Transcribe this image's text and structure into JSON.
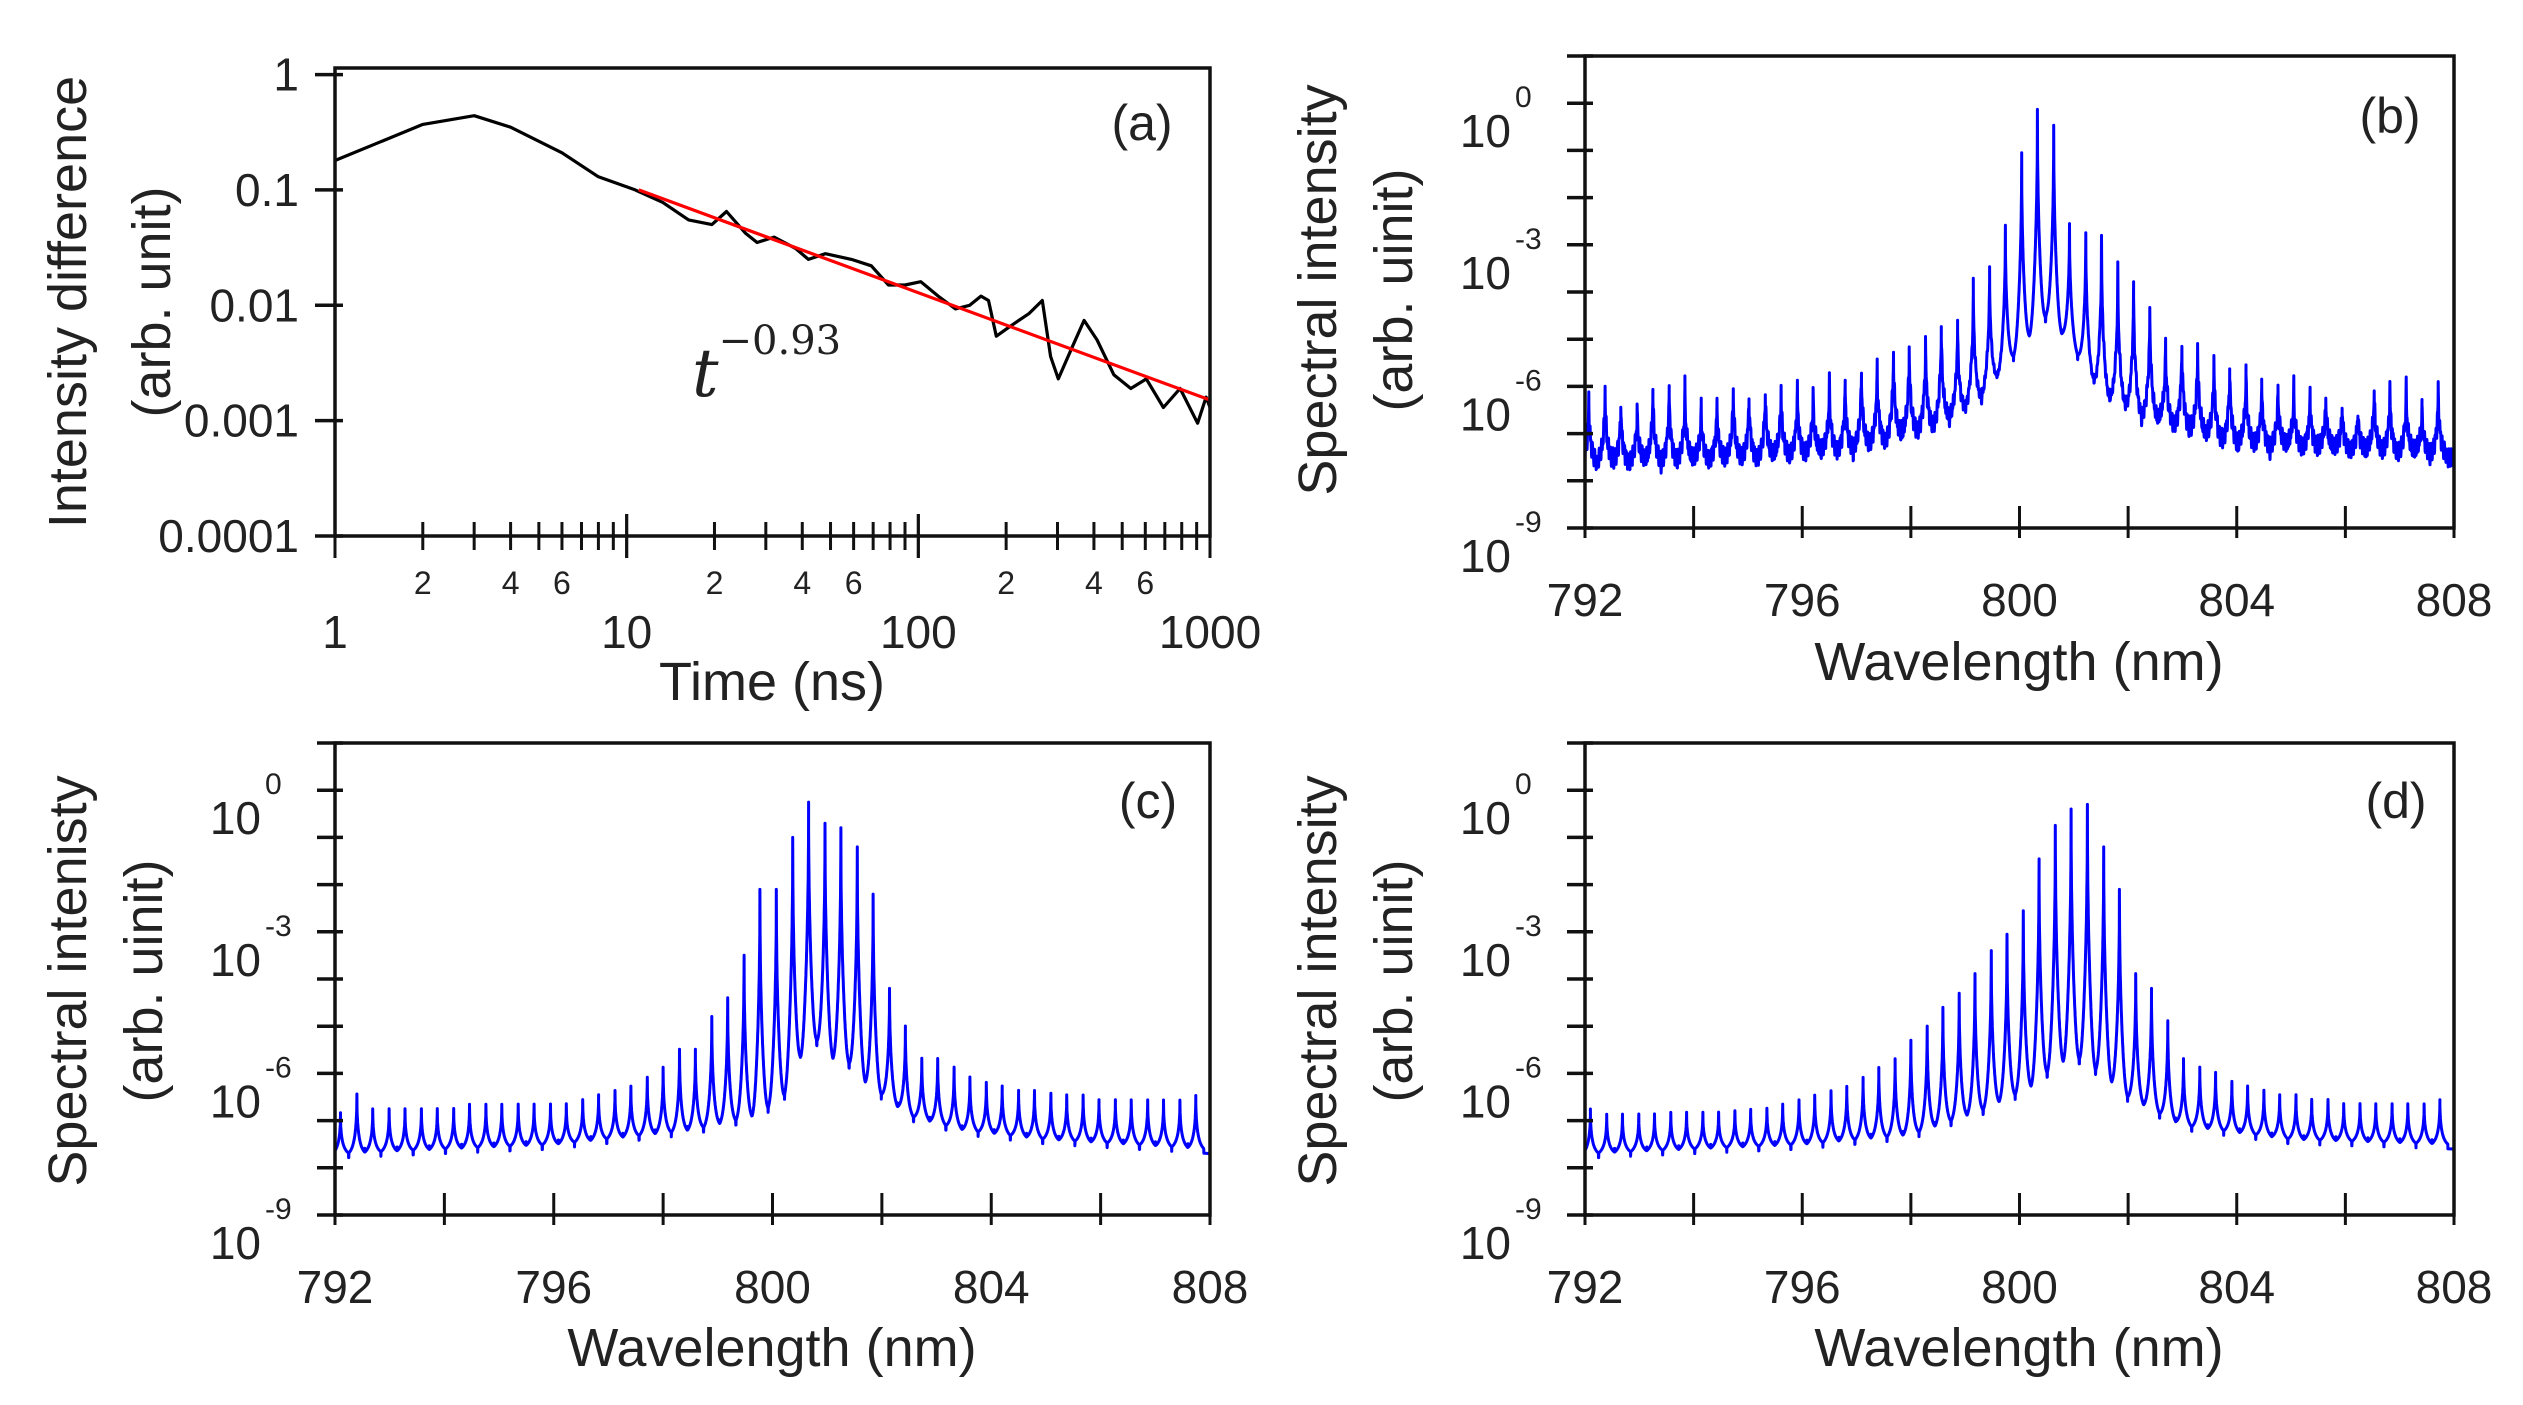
{
  "chart_data": [
    {
      "panel": "(a)",
      "type": "line",
      "xscale": "log",
      "yscale": "log",
      "xlim": [
        1,
        1000
      ],
      "ylim": [
        0.0001,
        1.14
      ],
      "xlabel": "Time (ns)",
      "ylabel": [
        "Intensity difference",
        "(arb. unit)"
      ],
      "yticks": [
        {
          "value": 1,
          "label": "1"
        },
        {
          "value": 0.1,
          "label": "0.1"
        },
        {
          "value": 0.01,
          "label": "0.01"
        },
        {
          "value": 0.001,
          "label": "0.001"
        },
        {
          "value": 0.0001,
          "label": "0.0001"
        }
      ],
      "xticks": [
        {
          "value": 1,
          "label": "1"
        },
        {
          "value": 10,
          "label": "10"
        },
        {
          "value": 100,
          "label": "100"
        },
        {
          "value": 1000,
          "label": "1000"
        }
      ],
      "xminor_labels": [
        {
          "value": 2,
          "label": "2"
        },
        {
          "value": 4,
          "label": "4"
        },
        {
          "value": 6,
          "label": "6"
        },
        {
          "value": 20,
          "label": "2"
        },
        {
          "value": 40,
          "label": "4"
        },
        {
          "value": 60,
          "label": "6"
        },
        {
          "value": 200,
          "label": "2"
        },
        {
          "value": 400,
          "label": "4"
        },
        {
          "value": 600,
          "label": "6"
        }
      ],
      "series": [
        {
          "color": "#000000",
          "x": [
            1,
            2,
            3,
            4,
            6,
            8,
            10.7,
            13.3,
            16.3,
            19.6,
            22,
            25.6,
            28,
            32,
            38,
            42,
            48,
            59,
            69,
            79,
            90,
            102,
            117,
            134,
            150,
            164,
            174,
            185,
            205,
            240,
            266,
            284,
            302,
            335,
            370,
            410,
            468,
            535,
            605,
            692,
            790,
            907,
            970,
            1000
          ],
          "y": [
            0.18,
            0.37,
            0.44,
            0.35,
            0.21,
            0.13,
            0.1,
            0.078,
            0.055,
            0.05,
            0.065,
            0.042,
            0.035,
            0.039,
            0.031,
            0.025,
            0.028,
            0.025,
            0.022,
            0.015,
            0.015,
            0.016,
            0.012,
            0.0093,
            0.01,
            0.012,
            0.011,
            0.0054,
            0.0065,
            0.0085,
            0.011,
            0.0036,
            0.0023,
            0.0042,
            0.0074,
            0.005,
            0.0025,
            0.0019,
            0.0023,
            0.0013,
            0.0019,
            0.00095,
            0.0016,
            0.0013
          ]
        }
      ],
      "fit": {
        "color": "#ff0000",
        "amplitude": 0.93,
        "exponent": -0.93,
        "x_range": [
          11,
          1000
        ]
      },
      "annotation": {
        "base": "t",
        "exponent": "−0.93"
      }
    },
    {
      "panel": "(b)",
      "type": "line",
      "xscale": "linear",
      "yscale": "log",
      "xlim": [
        792,
        808
      ],
      "ylim": [
        1e-09,
        10
      ],
      "xlabel": "Wavelength (nm)",
      "ylabel": [
        "Spectral intensity",
        "(arb. uinit)"
      ],
      "yticks": [
        {
          "value": 1,
          "base": "10",
          "exp": "0"
        },
        {
          "value": 0.001,
          "base": "10",
          "exp": "-3"
        },
        {
          "value": 1e-06,
          "base": "10",
          "exp": "-6"
        },
        {
          "value": 1e-09,
          "base": "10",
          "exp": "-9"
        }
      ],
      "xticks": [
        {
          "value": 792,
          "label": "792"
        },
        {
          "value": 796,
          "label": "796"
        },
        {
          "value": 800,
          "label": "800"
        },
        {
          "value": 804,
          "label": "804"
        },
        {
          "value": 808,
          "label": "808"
        }
      ],
      "color": "#0000ff",
      "mode_spacing_nm": 0.295,
      "peaks": [
        [
          792.07,
          6.3e-07
        ],
        [
          792.37,
          1e-06
        ],
        [
          792.66,
          5e-07
        ],
        [
          792.96,
          4e-07
        ],
        [
          793.25,
          1e-06
        ],
        [
          793.55,
          1e-06
        ],
        [
          793.84,
          1e-06
        ],
        [
          794.14,
          4e-07
        ],
        [
          794.43,
          5e-07
        ],
        [
          794.73,
          1e-06
        ],
        [
          795.02,
          7.9e-07
        ],
        [
          795.32,
          1e-06
        ],
        [
          795.61,
          1e-06
        ],
        [
          795.91,
          1e-06
        ],
        [
          796.2,
          7.9e-07
        ],
        [
          796.5,
          1.3e-06
        ],
        [
          796.79,
          1.3e-06
        ],
        [
          797.09,
          2.5e-06
        ],
        [
          797.38,
          3.2e-06
        ],
        [
          797.68,
          6.3e-06
        ],
        [
          797.97,
          7.9e-06
        ],
        [
          798.27,
          1e-05
        ],
        [
          798.56,
          2.5e-05
        ],
        [
          798.86,
          2.5e-05
        ],
        [
          799.15,
          0.00016
        ],
        [
          799.45,
          0.00032
        ],
        [
          799.74,
          0.0025
        ],
        [
          800.04,
          0.089
        ],
        [
          800.33,
          0.74
        ],
        [
          800.63,
          0.34
        ],
        [
          800.92,
          0.0028
        ],
        [
          801.22,
          0.0018
        ],
        [
          801.51,
          0.0014
        ],
        [
          801.81,
          0.00032
        ],
        [
          802.1,
          0.00016
        ],
        [
          802.4,
          5e-05
        ],
        [
          802.69,
          1e-05
        ],
        [
          802.99,
          1e-05
        ],
        [
          803.28,
          7.9e-06
        ],
        [
          803.58,
          4e-06
        ],
        [
          803.87,
          3.2e-06
        ],
        [
          804.17,
          2.5e-06
        ],
        [
          804.46,
          1.3e-06
        ],
        [
          804.76,
          1e-06
        ],
        [
          805.05,
          1e-06
        ],
        [
          805.35,
          7.9e-07
        ],
        [
          805.64,
          6.3e-07
        ],
        [
          805.94,
          4e-07
        ],
        [
          806.23,
          3.2e-07
        ],
        [
          806.53,
          1e-06
        ],
        [
          806.82,
          1e-06
        ],
        [
          807.12,
          1e-06
        ],
        [
          807.41,
          4e-07
        ],
        [
          807.71,
          1e-06
        ]
      ],
      "baseline": [
        [
          792,
          2e-08
        ],
        [
          795,
          2.5e-08
        ],
        [
          797,
          4e-08
        ],
        [
          798.5,
          1.3e-07
        ],
        [
          799.3,
          5e-07
        ],
        [
          800,
          5e-06
        ],
        [
          800.5,
          2.5e-05
        ],
        [
          801,
          5e-06
        ],
        [
          801.5,
          6e-07
        ],
        [
          802.3,
          2e-07
        ],
        [
          804,
          5e-08
        ],
        [
          808,
          3e-08
        ]
      ]
    },
    {
      "panel": "(c)",
      "type": "line",
      "xscale": "linear",
      "yscale": "log",
      "xlim": [
        792,
        808
      ],
      "ylim": [
        1e-09,
        10
      ],
      "xlabel": "Wavelength (nm)",
      "ylabel": [
        "Spectral intenisty",
        "(arb. uinit)"
      ],
      "yticks": [
        {
          "value": 1,
          "base": "10",
          "exp": "0"
        },
        {
          "value": 0.001,
          "base": "10",
          "exp": "-3"
        },
        {
          "value": 1e-06,
          "base": "10",
          "exp": "-6"
        },
        {
          "value": 1e-09,
          "base": "10",
          "exp": "-9"
        }
      ],
      "xticks": [
        {
          "value": 792,
          "label": "792"
        },
        {
          "value": 796,
          "label": "796"
        },
        {
          "value": 800,
          "label": "800"
        },
        {
          "value": 804,
          "label": "804"
        },
        {
          "value": 808,
          "label": "808"
        }
      ],
      "color": "#0000ff",
      "mode_spacing_nm": 0.295,
      "peaks": [
        [
          792.1,
          1.3e-07
        ],
        [
          792.4,
          3.5e-07
        ],
        [
          792.69,
          1.6e-07
        ],
        [
          792.99,
          1.6e-07
        ],
        [
          793.28,
          1.6e-07
        ],
        [
          793.58,
          1.6e-07
        ],
        [
          793.87,
          1.6e-07
        ],
        [
          794.17,
          1.6e-07
        ],
        [
          794.46,
          2e-07
        ],
        [
          794.76,
          2e-07
        ],
        [
          795.05,
          2e-07
        ],
        [
          795.35,
          2e-07
        ],
        [
          795.64,
          2e-07
        ],
        [
          795.94,
          2e-07
        ],
        [
          796.23,
          2e-07
        ],
        [
          796.53,
          2.5e-07
        ],
        [
          796.82,
          3.2e-07
        ],
        [
          797.12,
          4e-07
        ],
        [
          797.41,
          5e-07
        ],
        [
          797.71,
          7.9e-07
        ],
        [
          798,
          1.3e-06
        ],
        [
          798.3,
          3.2e-06
        ],
        [
          798.59,
          3.2e-06
        ],
        [
          798.89,
          1.6e-05
        ],
        [
          799.18,
          4e-05
        ],
        [
          799.48,
          0.00032
        ],
        [
          799.77,
          0.0079
        ],
        [
          800.07,
          0.0079
        ],
        [
          800.37,
          0.1
        ],
        [
          800.66,
          0.56
        ],
        [
          800.96,
          0.2
        ],
        [
          801.25,
          0.16
        ],
        [
          801.55,
          0.063
        ],
        [
          801.84,
          0.0063
        ],
        [
          802.14,
          6.3e-05
        ],
        [
          802.43,
          1e-05
        ],
        [
          802.73,
          2e-06
        ],
        [
          803.02,
          2e-06
        ],
        [
          803.32,
          1.3e-06
        ],
        [
          803.61,
          7.9e-07
        ],
        [
          803.91,
          6e-07
        ],
        [
          804.2,
          5e-07
        ],
        [
          804.5,
          4e-07
        ],
        [
          804.79,
          4e-07
        ],
        [
          805.09,
          3.5e-07
        ],
        [
          805.38,
          3.2e-07
        ],
        [
          805.68,
          3.2e-07
        ],
        [
          805.97,
          2.5e-07
        ],
        [
          806.27,
          2.5e-07
        ],
        [
          806.56,
          2.5e-07
        ],
        [
          806.86,
          2.5e-07
        ],
        [
          807.15,
          2.5e-07
        ],
        [
          807.45,
          2.5e-07
        ],
        [
          807.74,
          3.2e-07
        ]
      ],
      "baseline": [
        [
          792,
          1.6e-08
        ],
        [
          796,
          2.5e-08
        ],
        [
          798.5,
          5e-08
        ],
        [
          799.7,
          1e-07
        ],
        [
          800.2,
          2.5e-07
        ],
        [
          800.5,
          1.6e-06
        ],
        [
          800.8,
          4e-06
        ],
        [
          801.1,
          1.6e-06
        ],
        [
          801.4,
          1.3e-06
        ],
        [
          801.7,
          5e-07
        ],
        [
          802,
          2.8e-07
        ],
        [
          802.5,
          1e-07
        ],
        [
          803.5,
          5e-08
        ],
        [
          805,
          3.2e-08
        ],
        [
          808,
          2e-08
        ]
      ]
    },
    {
      "panel": "(d)",
      "type": "line",
      "xscale": "linear",
      "yscale": "log",
      "xlim": [
        792,
        808
      ],
      "ylim": [
        1e-09,
        10
      ],
      "xlabel": "Wavelength (nm)",
      "ylabel": [
        "Spectral intensity",
        "(arb. uinit)"
      ],
      "yticks": [
        {
          "value": 1,
          "base": "10",
          "exp": "0"
        },
        {
          "value": 0.001,
          "base": "10",
          "exp": "-3"
        },
        {
          "value": 1e-06,
          "base": "10",
          "exp": "-6"
        },
        {
          "value": 1e-09,
          "base": "10",
          "exp": "-9"
        }
      ],
      "xticks": [
        {
          "value": 792,
          "label": "792"
        },
        {
          "value": 796,
          "label": "796"
        },
        {
          "value": 800,
          "label": "800"
        },
        {
          "value": 804,
          "label": "804"
        },
        {
          "value": 808,
          "label": "808"
        }
      ],
      "color": "#0000ff",
      "mode_spacing_nm": 0.295,
      "peaks": [
        [
          792.1,
          1.6e-07
        ],
        [
          792.4,
          1.2e-07
        ],
        [
          792.69,
          1.2e-07
        ],
        [
          792.99,
          1.2e-07
        ],
        [
          793.28,
          1.2e-07
        ],
        [
          793.58,
          1.3e-07
        ],
        [
          793.87,
          1.3e-07
        ],
        [
          794.17,
          1.3e-07
        ],
        [
          794.46,
          1.3e-07
        ],
        [
          794.76,
          1.4e-07
        ],
        [
          795.05,
          1.5e-07
        ],
        [
          795.35,
          1.6e-07
        ],
        [
          795.64,
          2e-07
        ],
        [
          795.94,
          2.5e-07
        ],
        [
          796.23,
          3.2e-07
        ],
        [
          796.53,
          4e-07
        ],
        [
          796.82,
          5e-07
        ],
        [
          797.12,
          7.9e-07
        ],
        [
          797.41,
          1.3e-06
        ],
        [
          797.71,
          2e-06
        ],
        [
          798,
          5e-06
        ],
        [
          798.3,
          1e-05
        ],
        [
          798.59,
          2.5e-05
        ],
        [
          798.89,
          5e-05
        ],
        [
          799.18,
          0.00013
        ],
        [
          799.48,
          0.0004
        ],
        [
          799.77,
          0.00089
        ],
        [
          800.07,
          0.0028
        ],
        [
          800.36,
          0.035
        ],
        [
          800.66,
          0.18
        ],
        [
          800.95,
          0.4
        ],
        [
          801.25,
          0.5
        ],
        [
          801.55,
          0.063
        ],
        [
          801.84,
          0.0079
        ],
        [
          802.14,
          0.00013
        ],
        [
          802.43,
          6.3e-05
        ],
        [
          802.73,
          1.3e-05
        ],
        [
          803.02,
          2e-06
        ],
        [
          803.32,
          1.3e-06
        ],
        [
          803.61,
          1e-06
        ],
        [
          803.91,
          6.3e-07
        ],
        [
          804.2,
          5e-07
        ],
        [
          804.5,
          4e-07
        ],
        [
          804.79,
          3.2e-07
        ],
        [
          805.09,
          3.2e-07
        ],
        [
          805.38,
          2.5e-07
        ],
        [
          805.68,
          2.5e-07
        ],
        [
          805.97,
          2e-07
        ],
        [
          806.27,
          2e-07
        ],
        [
          806.56,
          2e-07
        ],
        [
          806.86,
          2e-07
        ],
        [
          807.15,
          2e-07
        ],
        [
          807.45,
          2e-07
        ],
        [
          807.74,
          2.5e-07
        ]
      ],
      "baseline": [
        [
          792,
          1.6e-08
        ],
        [
          796,
          2.5e-08
        ],
        [
          798,
          4e-08
        ],
        [
          799.3,
          1.3e-07
        ],
        [
          800.2,
          4e-07
        ],
        [
          800.7,
          1.3e-06
        ],
        [
          801.1,
          1.6e-06
        ],
        [
          801.5,
          8e-07
        ],
        [
          802,
          2.5e-07
        ],
        [
          803,
          6.3e-08
        ],
        [
          805,
          3.2e-08
        ],
        [
          808,
          2.5e-08
        ]
      ]
    }
  ]
}
